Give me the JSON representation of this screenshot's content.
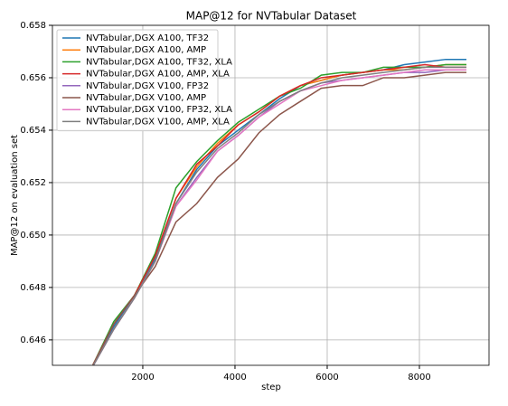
{
  "chart_data": {
    "type": "line",
    "title": "MAP@12 for NVTabular Dataset",
    "x_label": "step",
    "y_label": "MAP@12 on evaluation set",
    "x": [
      920,
      1370,
      1820,
      2270,
      2720,
      3170,
      3620,
      4070,
      4520,
      4970,
      5420,
      5870,
      6320,
      6770,
      7220,
      7670,
      8120,
      8570,
      9020
    ],
    "series": [
      {
        "name": "NVTabular,DGX A100, TF32",
        "color": "#1f77b4",
        "values": [
          0.64505,
          0.6465,
          0.6477,
          0.6491,
          0.6512,
          0.6525,
          0.6534,
          0.654,
          0.6546,
          0.6552,
          0.6557,
          0.6559,
          0.6561,
          0.6562,
          0.6563,
          0.6565,
          0.6566,
          0.6567,
          0.6567
        ]
      },
      {
        "name": "NVTabular,DGX A100, AMP",
        "color": "#ff7f0e",
        "values": [
          0.64505,
          0.6466,
          0.6477,
          0.6492,
          0.6514,
          0.6526,
          0.6535,
          0.6542,
          0.6547,
          0.6553,
          0.6557,
          0.6559,
          0.6561,
          0.6562,
          0.6563,
          0.6563,
          0.6564,
          0.6565,
          0.6565
        ]
      },
      {
        "name": "NVTabular,DGX A100, TF32, XLA",
        "color": "#2ca02c",
        "values": [
          0.64505,
          0.6467,
          0.6477,
          0.6493,
          0.6518,
          0.6528,
          0.6536,
          0.6543,
          0.6548,
          0.6553,
          0.6556,
          0.6561,
          0.6562,
          0.6562,
          0.6564,
          0.6564,
          0.6564,
          0.6565,
          0.6565
        ]
      },
      {
        "name": "NVTabular,DGX A100, AMP, XLA",
        "color": "#d62728",
        "values": [
          0.64505,
          0.6466,
          0.6477,
          0.6492,
          0.6514,
          0.6527,
          0.6534,
          0.6542,
          0.6547,
          0.6553,
          0.6557,
          0.656,
          0.6561,
          0.6562,
          0.6563,
          0.6564,
          0.6565,
          0.6564,
          0.6564
        ]
      },
      {
        "name": "NVTabular,DGX V100, FP32",
        "color": "#9467bd",
        "values": [
          0.645,
          0.6464,
          0.6476,
          0.649,
          0.6511,
          0.6522,
          0.6532,
          0.6538,
          0.6545,
          0.6551,
          0.6555,
          0.6558,
          0.6559,
          0.656,
          0.6561,
          0.6562,
          0.6562,
          0.6563,
          0.6563
        ]
      },
      {
        "name": "NVTabular,DGX V100, AMP",
        "color": "#8c564b",
        "values": [
          0.64505,
          0.6466,
          0.6477,
          0.6488,
          0.6505,
          0.6512,
          0.6522,
          0.6529,
          0.6539,
          0.6546,
          0.6551,
          0.6556,
          0.6557,
          0.6557,
          0.656,
          0.656,
          0.6561,
          0.6562,
          0.6562
        ]
      },
      {
        "name": "NVTabular,DGX V100, FP32, XLA",
        "color": "#e377c2",
        "values": [
          0.645,
          0.6464,
          0.6476,
          0.649,
          0.6511,
          0.6521,
          0.6532,
          0.6538,
          0.6545,
          0.655,
          0.6555,
          0.6557,
          0.6559,
          0.656,
          0.6561,
          0.6562,
          0.6563,
          0.6563,
          0.6563
        ]
      },
      {
        "name": "NVTabular,DGX V100, AMP, XLA",
        "color": "#7f7f7f",
        "values": [
          0.645,
          0.6464,
          0.6476,
          0.649,
          0.6512,
          0.6524,
          0.6533,
          0.6539,
          0.6546,
          0.6551,
          0.6555,
          0.6558,
          0.656,
          0.6561,
          0.6562,
          0.6563,
          0.6564,
          0.6564,
          0.6564
        ]
      }
    ],
    "xlim": [
      40,
      9510
    ],
    "ylim": [
      0.64503,
      0.658
    ],
    "xticks": [
      2000,
      4000,
      6000,
      8000
    ],
    "yticks": [
      {
        "value": 0.646,
        "label": "0.646"
      },
      {
        "value": 0.648,
        "label": "0.648"
      },
      {
        "value": 0.65,
        "label": "0.650"
      },
      {
        "value": 0.652,
        "label": "0.652"
      },
      {
        "value": 0.654,
        "label": "0.654"
      },
      {
        "value": 0.656,
        "label": "0.656"
      },
      {
        "value": 0.658,
        "label": "0.658"
      }
    ],
    "grid": true,
    "legend_position": "upper-left"
  }
}
